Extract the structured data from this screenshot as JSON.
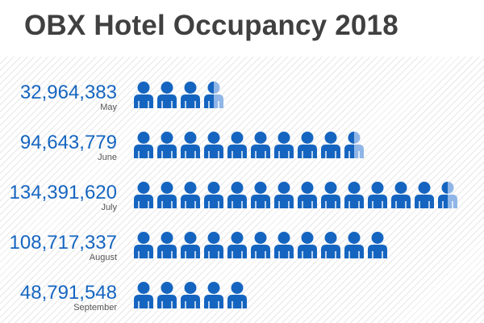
{
  "title": "OBX Hotel Occupancy 2018",
  "colors": {
    "icon": "#1565c0",
    "icon_partial": "#8fb6e6",
    "value_text": "#1565c0",
    "title_text": "#404040"
  },
  "chart_data": {
    "type": "pictograph",
    "title": "OBX Hotel Occupancy 2018",
    "icon": "person-icon",
    "categories": [
      "May",
      "June",
      "July",
      "August",
      "September"
    ],
    "values": [
      32964383,
      94643779,
      134391620,
      108717337,
      48791548
    ],
    "value_labels": [
      "32,964,383",
      "94,643,779",
      "134,391,620",
      "108,717,337",
      "48,791,548"
    ],
    "icon_counts": [
      3.5,
      9.5,
      13.5,
      11,
      5
    ]
  }
}
